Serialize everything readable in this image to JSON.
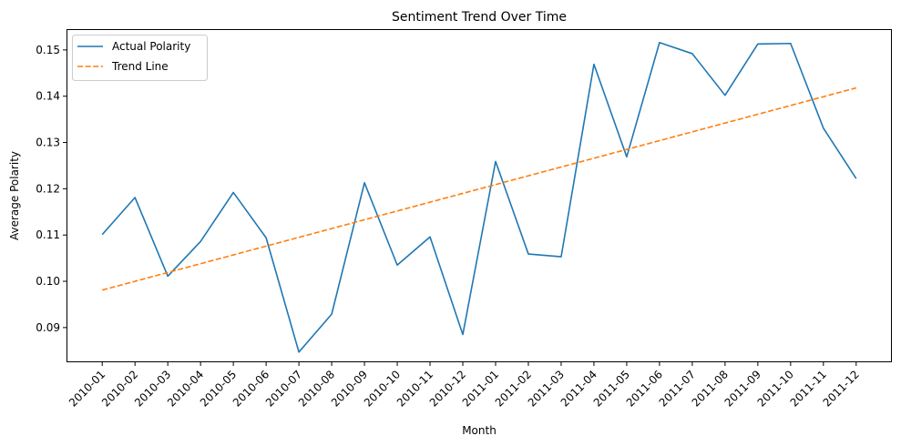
{
  "chart_data": {
    "type": "line",
    "title": "Sentiment Trend Over Time",
    "xlabel": "Month",
    "ylabel": "Average Polarity",
    "categories": [
      "2010-01",
      "2010-02",
      "2010-03",
      "2010-04",
      "2010-05",
      "2010-06",
      "2010-07",
      "2010-08",
      "2010-09",
      "2010-10",
      "2010-11",
      "2010-12",
      "2011-01",
      "2011-02",
      "2011-03",
      "2011-04",
      "2011-05",
      "2011-06",
      "2011-07",
      "2011-08",
      "2011-09",
      "2011-10",
      "2011-11",
      "2011-12"
    ],
    "yticks": [
      0.09,
      0.1,
      0.11,
      0.12,
      0.13,
      0.14,
      0.15
    ],
    "ylim": [
      0.0825,
      0.1545
    ],
    "grid": false,
    "legend_position": "top-left",
    "series": [
      {
        "name": "Actual Polarity",
        "style": "solid",
        "color": "#1f77b4",
        "values": [
          0.1101,
          0.1181,
          0.1011,
          0.1086,
          0.1192,
          0.1094,
          0.0847,
          0.0929,
          0.1213,
          0.1035,
          0.1096,
          0.0885,
          0.1259,
          0.1059,
          0.1053,
          0.1469,
          0.1269,
          0.1516,
          0.1492,
          0.1402,
          0.1513,
          0.1514,
          0.1331,
          0.1222
        ]
      },
      {
        "name": "Trend Line",
        "style": "dashed",
        "color": "#ff7f0e",
        "values": [
          0.0981,
          0.1,
          0.1019,
          0.1038,
          0.1057,
          0.1076,
          0.1095,
          0.1114,
          0.1133,
          0.1152,
          0.1171,
          0.119,
          0.1209,
          0.1228,
          0.1247,
          0.1266,
          0.1285,
          0.1304,
          0.1323,
          0.1342,
          0.1361,
          0.138,
          0.1399,
          0.1418
        ]
      }
    ]
  }
}
